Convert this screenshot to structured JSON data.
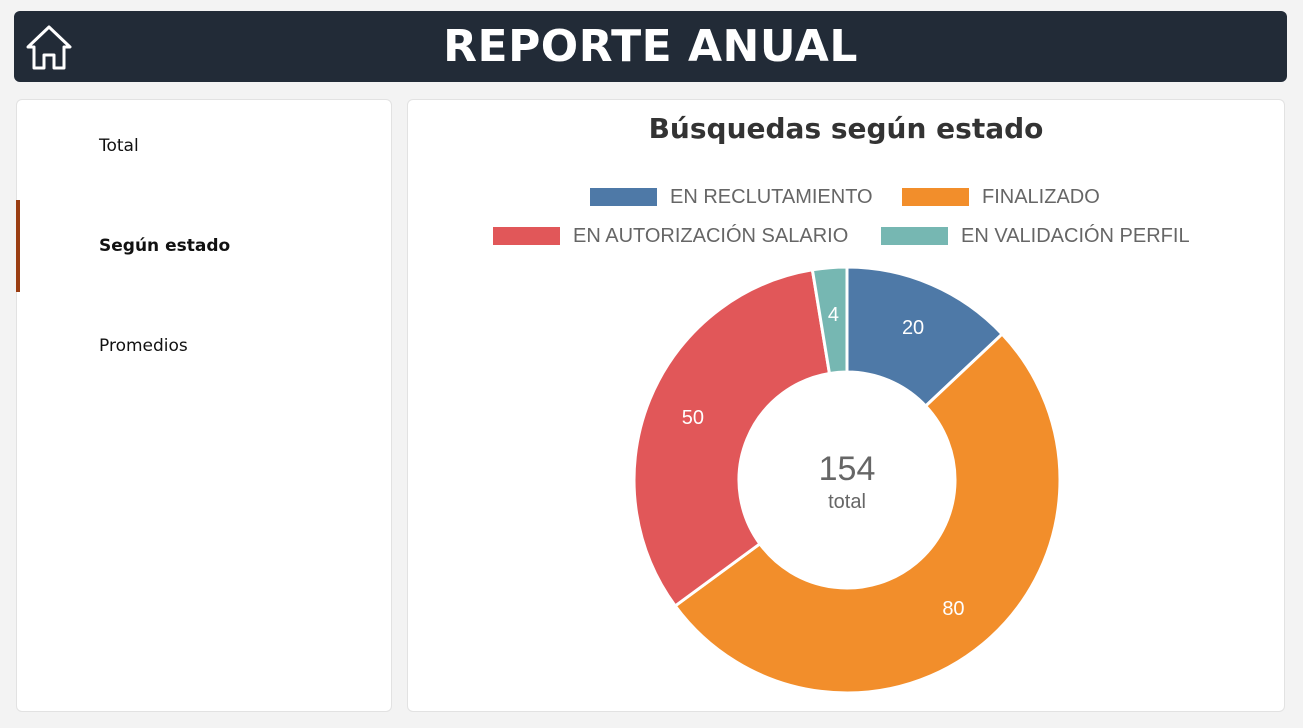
{
  "header": {
    "title": "REPORTE ANUAL",
    "home_icon": "home-icon"
  },
  "sidebar": {
    "items": [
      {
        "label": "Total",
        "active": false
      },
      {
        "label": "Según estado",
        "active": true
      },
      {
        "label": "Promedios",
        "active": false
      }
    ],
    "accent_color": "#9a3d12"
  },
  "chart_data": {
    "type": "pie",
    "title": "Búsquedas según estado",
    "categories": [
      "EN RECLUTAMIENTO",
      "FINALIZADO",
      "EN AUTORIZACIÓN SALARIO",
      "EN VALIDACIÓN PERFIL"
    ],
    "values": [
      20,
      80,
      50,
      4
    ],
    "colors": [
      "#4e79a7",
      "#f28e2b",
      "#e15759",
      "#76b7b2"
    ],
    "center_value": "154",
    "center_label": "total",
    "legend_position": "top",
    "donut": true
  }
}
